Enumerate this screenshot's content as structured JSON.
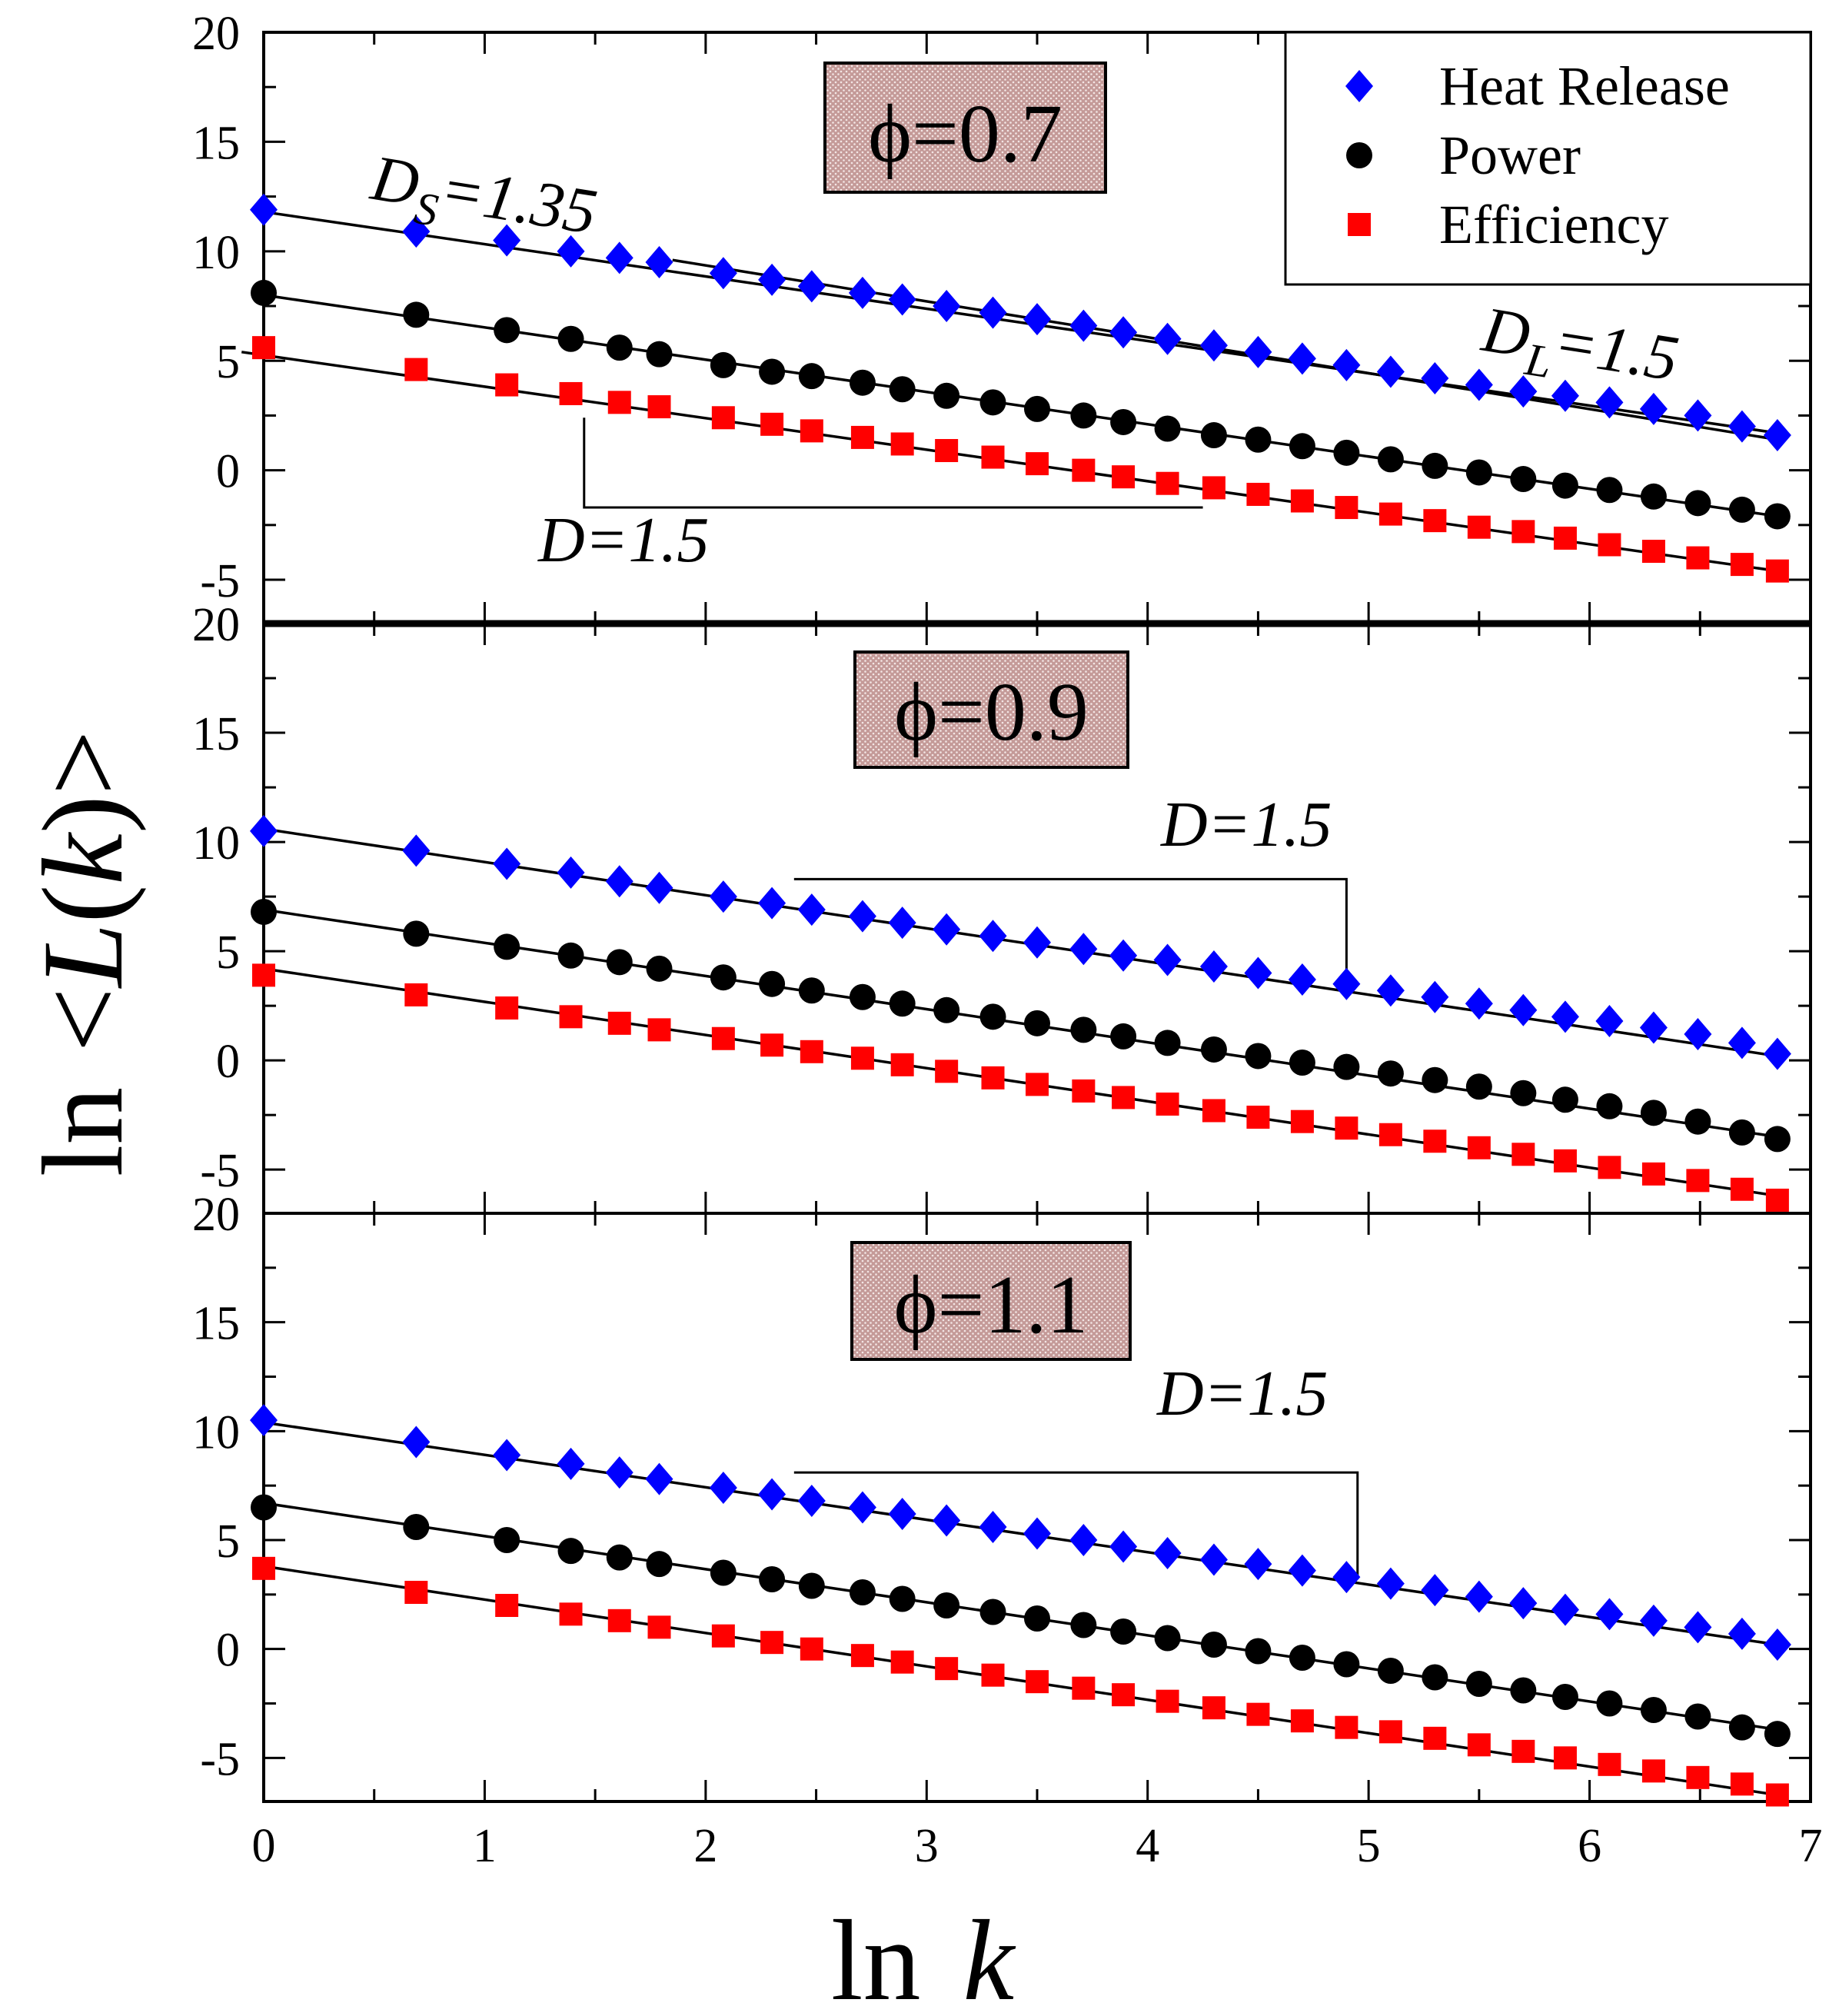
{
  "figure": {
    "ylabel_prefix": "ln",
    "ylabel_italic": "L",
    "xlabel_prefix": "ln",
    "xlabel_italic": "k"
  },
  "legend": [
    {
      "label": "Heat Release",
      "color": "#0000ff",
      "marker": "diamond"
    },
    {
      "label": "Power",
      "color": "#000000",
      "marker": "circle"
    },
    {
      "label": "Efficiency",
      "color": "#ff0000",
      "marker": "square"
    }
  ],
  "chart_data": [
    {
      "type": "scatter",
      "title": "ϕ=0.7",
      "xlabel": "ln k",
      "ylabel": "ln <L(k)>",
      "xlim": [
        0,
        7
      ],
      "ylim": [
        -7,
        20
      ],
      "x_ticks": [
        0,
        1,
        2,
        3,
        4,
        5,
        6,
        7
      ],
      "y_ticks": [
        -5,
        0,
        5,
        10,
        15,
        20
      ],
      "x": [
        0,
        0.69,
        1.1,
        1.39,
        1.61,
        1.79,
        2.08,
        2.3,
        2.48,
        2.71,
        2.89,
        3.09,
        3.3,
        3.5,
        3.71,
        3.89,
        4.09,
        4.3,
        4.5,
        4.7,
        4.9,
        5.1,
        5.3,
        5.5,
        5.7,
        5.89,
        6.09,
        6.29,
        6.49,
        6.69,
        6.85
      ],
      "series": [
        {
          "name": "Heat Release",
          "values": [
            11.9,
            10.9,
            10.5,
            10.0,
            9.7,
            9.5,
            9.0,
            8.7,
            8.4,
            8.1,
            7.8,
            7.5,
            7.2,
            6.9,
            6.6,
            6.3,
            6.0,
            5.7,
            5.4,
            5.1,
            4.8,
            4.5,
            4.2,
            3.9,
            3.6,
            3.4,
            3.1,
            2.8,
            2.5,
            2.0,
            1.6
          ]
        },
        {
          "name": "Power",
          "values": [
            8.1,
            7.1,
            6.4,
            6.0,
            5.6,
            5.3,
            4.8,
            4.5,
            4.3,
            4.0,
            3.7,
            3.4,
            3.1,
            2.8,
            2.5,
            2.2,
            1.9,
            1.6,
            1.4,
            1.1,
            0.8,
            0.5,
            0.2,
            -0.1,
            -0.4,
            -0.7,
            -0.9,
            -1.2,
            -1.5,
            -1.8,
            -2.1
          ]
        },
        {
          "name": "Efficiency",
          "values": [
            5.6,
            4.6,
            3.9,
            3.5,
            3.1,
            2.9,
            2.4,
            2.1,
            1.8,
            1.5,
            1.2,
            0.9,
            0.6,
            0.3,
            0.0,
            -0.3,
            -0.6,
            -0.8,
            -1.1,
            -1.4,
            -1.7,
            -2.0,
            -2.3,
            -2.6,
            -2.8,
            -3.1,
            -3.4,
            -3.7,
            -4.0,
            -4.3,
            -4.6
          ]
        }
      ],
      "fits": [
        {
          "name": "Heat Release fit",
          "x": [
            0,
            6.85
          ],
          "y": [
            11.8,
            1.7
          ]
        },
        {
          "name": "Heat Release fit (slope 1.35)",
          "x": [
            1.85,
            6.85
          ],
          "y": [
            9.6,
            1.4
          ]
        },
        {
          "name": "Power fit",
          "x": [
            0,
            6.85
          ],
          "y": [
            8.0,
            -2.1
          ]
        },
        {
          "name": "Efficiency fit",
          "x": [
            -0.1,
            6.85
          ],
          "y": [
            5.4,
            -4.6
          ]
        }
      ],
      "slope_guides": [
        {
          "x": [
            1.45,
            1.45,
            4.25
          ],
          "y": [
            2.4,
            -1.7,
            -1.7
          ]
        }
      ],
      "annotations": [
        {
          "main": "D",
          "sub": "S",
          "rest": "=1.35"
        },
        {
          "main": "D",
          "sub": "L",
          "rest": "=1.5"
        },
        {
          "main": "D",
          "sub": "",
          "rest": "=1.5"
        }
      ]
    },
    {
      "type": "scatter",
      "title": "ϕ=0.9",
      "xlabel": "ln k",
      "ylabel": "ln <L(k)>",
      "xlim": [
        0,
        7
      ],
      "ylim": [
        -7,
        20
      ],
      "x_ticks": [
        0,
        1,
        2,
        3,
        4,
        5,
        6,
        7
      ],
      "y_ticks": [
        -5,
        0,
        5,
        10,
        15,
        20
      ],
      "x": [
        0,
        0.69,
        1.1,
        1.39,
        1.61,
        1.79,
        2.08,
        2.3,
        2.48,
        2.71,
        2.89,
        3.09,
        3.3,
        3.5,
        3.71,
        3.89,
        4.09,
        4.3,
        4.5,
        4.7,
        4.9,
        5.1,
        5.3,
        5.5,
        5.7,
        5.89,
        6.09,
        6.29,
        6.49,
        6.69,
        6.85
      ],
      "series": [
        {
          "name": "Heat Release",
          "values": [
            10.5,
            9.6,
            9.0,
            8.6,
            8.2,
            7.9,
            7.5,
            7.2,
            6.9,
            6.6,
            6.3,
            6.0,
            5.7,
            5.4,
            5.1,
            4.8,
            4.6,
            4.3,
            4.0,
            3.7,
            3.5,
            3.2,
            2.9,
            2.6,
            2.3,
            2.0,
            1.8,
            1.5,
            1.2,
            0.8,
            0.3
          ]
        },
        {
          "name": "Power",
          "values": [
            6.8,
            5.8,
            5.2,
            4.8,
            4.5,
            4.2,
            3.8,
            3.5,
            3.2,
            2.9,
            2.6,
            2.3,
            2.0,
            1.7,
            1.4,
            1.1,
            0.8,
            0.5,
            0.2,
            -0.1,
            -0.3,
            -0.6,
            -0.9,
            -1.2,
            -1.5,
            -1.8,
            -2.1,
            -2.4,
            -2.8,
            -3.3,
            -3.6
          ]
        },
        {
          "name": "Efficiency",
          "values": [
            3.9,
            3.0,
            2.4,
            2.0,
            1.7,
            1.4,
            1.0,
            0.7,
            0.4,
            0.1,
            -0.2,
            -0.5,
            -0.8,
            -1.1,
            -1.4,
            -1.7,
            -2.0,
            -2.3,
            -2.6,
            -2.8,
            -3.1,
            -3.4,
            -3.7,
            -4.0,
            -4.3,
            -4.6,
            -4.9,
            -5.2,
            -5.5,
            -5.9,
            -6.4
          ]
        }
      ],
      "fits": [
        {
          "name": "Heat Release fit",
          "x": [
            0,
            6.85
          ],
          "y": [
            10.6,
            0.2
          ]
        },
        {
          "name": "Power fit",
          "x": [
            0,
            6.85
          ],
          "y": [
            6.9,
            -3.5
          ]
        },
        {
          "name": "Efficiency fit",
          "x": [
            0,
            6.85
          ],
          "y": [
            4.2,
            -6.2
          ]
        }
      ],
      "slope_guides": [
        {
          "x": [
            2.4,
            4.9,
            4.9
          ],
          "y": [
            8.3,
            8.3,
            3.4
          ]
        }
      ],
      "annotations": [
        {
          "main": "D",
          "sub": "",
          "rest": "=1.5"
        }
      ]
    },
    {
      "type": "scatter",
      "title": "ϕ=1.1",
      "xlabel": "ln k",
      "ylabel": "ln <L(k)>",
      "xlim": [
        0,
        7
      ],
      "ylim": [
        -7,
        20
      ],
      "x_ticks": [
        0,
        1,
        2,
        3,
        4,
        5,
        6,
        7
      ],
      "y_ticks": [
        -5,
        0,
        5,
        10,
        15,
        20
      ],
      "x": [
        0,
        0.69,
        1.1,
        1.39,
        1.61,
        1.79,
        2.08,
        2.3,
        2.48,
        2.71,
        2.89,
        3.09,
        3.3,
        3.5,
        3.71,
        3.89,
        4.09,
        4.3,
        4.5,
        4.7,
        4.9,
        5.1,
        5.3,
        5.5,
        5.7,
        5.89,
        6.09,
        6.29,
        6.49,
        6.69,
        6.85
      ],
      "series": [
        {
          "name": "Heat Release",
          "values": [
            10.5,
            9.5,
            8.9,
            8.5,
            8.1,
            7.8,
            7.4,
            7.1,
            6.8,
            6.5,
            6.2,
            5.9,
            5.6,
            5.3,
            5.0,
            4.7,
            4.4,
            4.1,
            3.9,
            3.6,
            3.3,
            3.0,
            2.7,
            2.4,
            2.1,
            1.8,
            1.6,
            1.3,
            1.0,
            0.7,
            0.2
          ]
        },
        {
          "name": "Power",
          "values": [
            6.5,
            5.6,
            5.0,
            4.5,
            4.2,
            3.9,
            3.5,
            3.2,
            2.9,
            2.6,
            2.3,
            2.0,
            1.7,
            1.4,
            1.1,
            0.8,
            0.5,
            0.2,
            -0.1,
            -0.4,
            -0.7,
            -1.0,
            -1.3,
            -1.6,
            -1.9,
            -2.2,
            -2.5,
            -2.8,
            -3.1,
            -3.6,
            -3.9
          ]
        },
        {
          "name": "Efficiency",
          "values": [
            3.7,
            2.6,
            2.0,
            1.6,
            1.3,
            1.0,
            0.6,
            0.3,
            0.0,
            -0.3,
            -0.6,
            -0.9,
            -1.2,
            -1.5,
            -1.8,
            -2.1,
            -2.4,
            -2.7,
            -3.0,
            -3.3,
            -3.6,
            -3.8,
            -4.1,
            -4.4,
            -4.7,
            -5.0,
            -5.3,
            -5.6,
            -5.9,
            -6.2,
            -6.7
          ]
        }
      ],
      "fits": [
        {
          "name": "Heat Release fit",
          "x": [
            0,
            6.85
          ],
          "y": [
            10.4,
            0.2
          ]
        },
        {
          "name": "Power fit",
          "x": [
            0,
            6.85
          ],
          "y": [
            6.7,
            -3.7
          ]
        },
        {
          "name": "Efficiency fit",
          "x": [
            0,
            6.85
          ],
          "y": [
            3.8,
            -6.7
          ]
        }
      ],
      "slope_guides": [
        {
          "x": [
            2.4,
            4.95,
            4.95
          ],
          "y": [
            8.1,
            8.1,
            3.2
          ]
        }
      ],
      "annotations": [
        {
          "main": "D",
          "sub": "",
          "rest": "=1.5"
        }
      ]
    }
  ]
}
